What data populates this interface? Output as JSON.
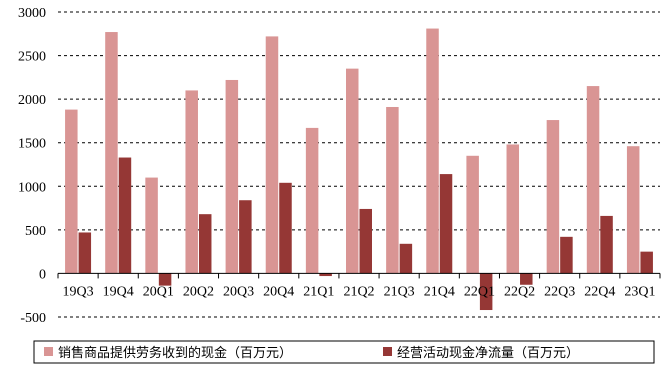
{
  "chart_data": {
    "type": "bar",
    "categories": [
      "19Q3",
      "19Q4",
      "20Q1",
      "20Q2",
      "20Q3",
      "20Q4",
      "21Q1",
      "21Q2",
      "21Q3",
      "21Q4",
      "22Q1",
      "22Q2",
      "22Q3",
      "22Q4",
      "23Q1"
    ],
    "series": [
      {
        "name": "销售商品提供劳务收到的现金（百万元）",
        "color": "#d99594",
        "values": [
          1880,
          2770,
          1100,
          2100,
          2220,
          2720,
          1670,
          2350,
          1910,
          2810,
          1350,
          1480,
          1760,
          2150,
          1460
        ]
      },
      {
        "name": "经营活动现金净流量（百万元）",
        "color": "#953735",
        "values": [
          470,
          1330,
          -140,
          680,
          840,
          1040,
          -30,
          740,
          340,
          1140,
          -420,
          -130,
          420,
          660,
          250
        ]
      }
    ],
    "ylim": [
      -500,
      3000
    ],
    "yticks": [
      -500,
      0,
      500,
      1000,
      1500,
      2000,
      2500,
      3000
    ],
    "grid": true,
    "legend_position": "bottom"
  }
}
